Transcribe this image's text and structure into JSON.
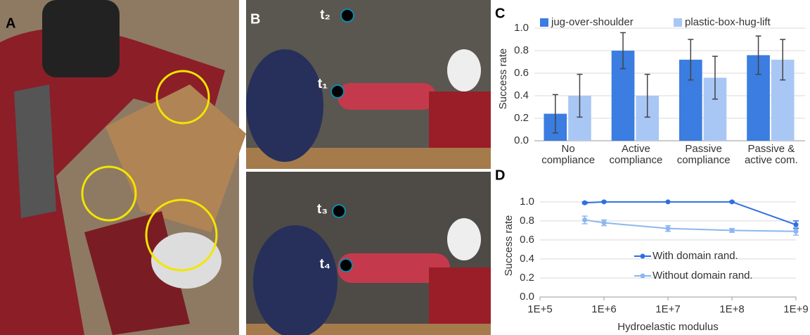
{
  "panel_labels": [
    "A",
    "B",
    "C",
    "D"
  ],
  "time_labels": [
    "t₂",
    "t₁",
    "t₃",
    "t₄"
  ],
  "chart_data": [
    {
      "type": "bar",
      "y_label": "Success rate",
      "categories": [
        [
          "No",
          "compliance"
        ],
        [
          "Active",
          "compliance"
        ],
        [
          "Passive",
          "compliance"
        ],
        [
          "Passive &",
          "active com."
        ]
      ],
      "series": [
        {
          "name": "jug-over-shoulder",
          "color": "#3b7de0",
          "values": [
            0.24,
            0.8,
            0.72,
            0.76
          ],
          "errors": [
            0.17,
            0.16,
            0.18,
            0.17
          ]
        },
        {
          "name": "plastic-box-hug-lift",
          "color": "#a9c7f4",
          "values": [
            0.4,
            0.4,
            0.56,
            0.72
          ],
          "errors": [
            0.19,
            0.19,
            0.19,
            0.18
          ]
        }
      ],
      "ylim": [
        0,
        1.1
      ],
      "yticks": [
        {
          "value": 0,
          "label": "0.0"
        },
        {
          "value": 0.2,
          "label": "0.2"
        },
        {
          "value": 0.4,
          "label": "0.4"
        },
        {
          "value": 0.6,
          "label": "0.6"
        },
        {
          "value": 0.8,
          "label": "0.8"
        },
        {
          "value": 1,
          "label": "1.0"
        }
      ],
      "grid": true,
      "legend": "top"
    },
    {
      "type": "line",
      "x_label": "Hydroelastic modulus",
      "y_label": "Success rate",
      "xscale": "log",
      "x": [
        500000,
        1000000,
        10000000,
        100000000,
        1000000000
      ],
      "series": [
        {
          "name": "With domain rand.",
          "color": "#2f6fe0",
          "values": [
            0.99,
            1.0,
            1.0,
            1.0,
            0.76
          ],
          "errors": [
            0.01,
            0.005,
            0,
            0.005,
            0.04
          ]
        },
        {
          "name": "Without domain rand.",
          "color": "#8db6f0",
          "values": [
            0.81,
            0.78,
            0.72,
            0.7,
            0.69
          ],
          "errors": [
            0.04,
            0.03,
            0.03,
            0.02,
            0.04
          ]
        }
      ],
      "xlim": [
        100000,
        1000000000
      ],
      "xticks": [
        {
          "value": 100000,
          "label": "1E+5"
        },
        {
          "value": 1000000,
          "label": "1E+6"
        },
        {
          "value": 10000000,
          "label": "1E+7"
        },
        {
          "value": 100000000,
          "label": "1E+8"
        },
        {
          "value": 1000000000,
          "label": "1E+9"
        }
      ],
      "ylim": [
        0,
        1.08
      ],
      "yticks": [
        {
          "value": 0,
          "label": "0.0"
        },
        {
          "value": 0.2,
          "label": "0.2"
        },
        {
          "value": 0.4,
          "label": "0.4"
        },
        {
          "value": 0.6,
          "label": "0.6"
        },
        {
          "value": 0.8,
          "label": "0.8"
        },
        {
          "value": 1,
          "label": "1.0"
        }
      ],
      "grid": true,
      "legend": "center right"
    }
  ]
}
